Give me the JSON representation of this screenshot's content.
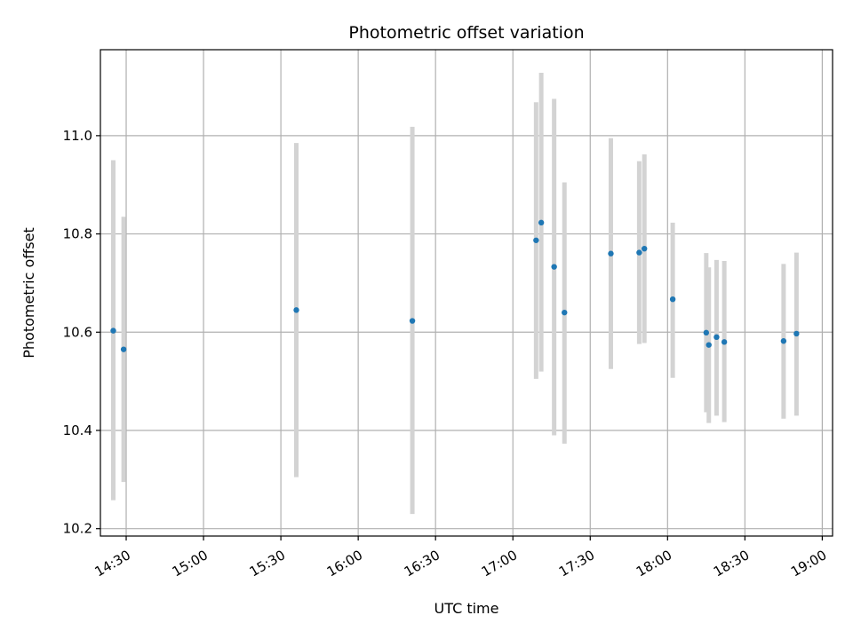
{
  "chart_data": {
    "type": "scatter",
    "title": "Photometric offset variation",
    "xlabel": "UTC time",
    "ylabel": "Photometric offset",
    "grid": true,
    "x_ticks": [
      "14:30",
      "15:00",
      "15:30",
      "16:00",
      "16:30",
      "17:00",
      "17:30",
      "18:00",
      "18:30",
      "19:00"
    ],
    "y_ticks": [
      "10.2",
      "10.4",
      "10.6",
      "10.8",
      "11.0"
    ],
    "xlim": [
      "14:20",
      "19:04"
    ],
    "ylim": [
      10.185,
      11.175
    ],
    "colors": {
      "point": "#1f77b4",
      "errorbar": "#d3d3d3",
      "grid": "#b0b0b0"
    },
    "series": [
      {
        "points": [
          {
            "x": "14:25",
            "y": 10.603,
            "lo": 10.258,
            "hi": 10.95
          },
          {
            "x": "14:29",
            "y": 10.565,
            "lo": 10.295,
            "hi": 10.835
          },
          {
            "x": "15:36",
            "y": 10.645,
            "lo": 10.305,
            "hi": 10.985
          },
          {
            "x": "16:21",
            "y": 10.623,
            "lo": 10.23,
            "hi": 11.018
          },
          {
            "x": "17:09",
            "y": 10.787,
            "lo": 10.505,
            "hi": 11.068
          },
          {
            "x": "17:11",
            "y": 10.823,
            "lo": 10.52,
            "hi": 11.128
          },
          {
            "x": "17:16",
            "y": 10.733,
            "lo": 10.39,
            "hi": 11.075
          },
          {
            "x": "17:20",
            "y": 10.64,
            "lo": 10.373,
            "hi": 10.905
          },
          {
            "x": "17:38",
            "y": 10.76,
            "lo": 10.525,
            "hi": 10.995
          },
          {
            "x": "17:49",
            "y": 10.762,
            "lo": 10.576,
            "hi": 10.948
          },
          {
            "x": "17:51",
            "y": 10.77,
            "lo": 10.578,
            "hi": 10.962
          },
          {
            "x": "18:02",
            "y": 10.667,
            "lo": 10.507,
            "hi": 10.823
          },
          {
            "x": "18:15",
            "y": 10.599,
            "lo": 10.437,
            "hi": 10.761
          },
          {
            "x": "18:16",
            "y": 10.574,
            "lo": 10.415,
            "hi": 10.732
          },
          {
            "x": "18:19",
            "y": 10.59,
            "lo": 10.43,
            "hi": 10.747
          },
          {
            "x": "18:22",
            "y": 10.58,
            "lo": 10.417,
            "hi": 10.745
          },
          {
            "x": "18:45",
            "y": 10.582,
            "lo": 10.424,
            "hi": 10.739
          },
          {
            "x": "18:50",
            "y": 10.597,
            "lo": 10.43,
            "hi": 10.762
          }
        ]
      }
    ]
  }
}
